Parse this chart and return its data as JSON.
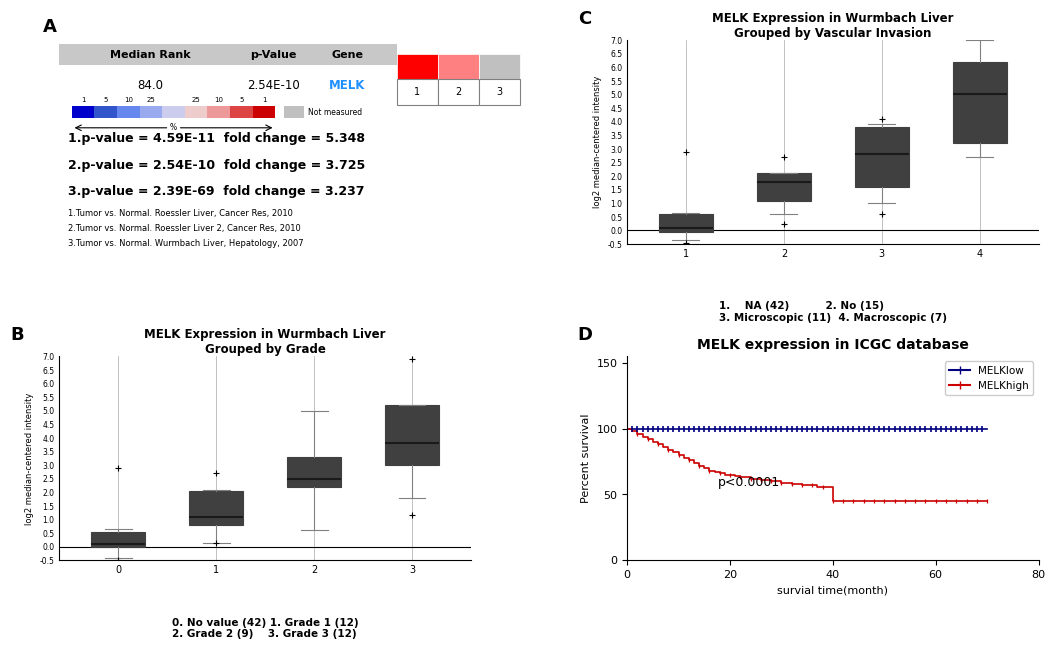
{
  "panel_A": {
    "header_bg": "#C8C8C8",
    "header_cols": [
      "Median Rank",
      "p-Value",
      "Gene"
    ],
    "row_values": [
      "84.0",
      "2.54E-10",
      "MELK"
    ],
    "melk_color": "#1E90FF",
    "heatmap_colors": [
      "#FF0000",
      "#FF8080",
      "#C0C0C0"
    ],
    "heatmap_labels": [
      "1",
      "2",
      "3"
    ],
    "legend_colors": [
      "#0000CC",
      "#3355CC",
      "#6688EE",
      "#99AAEE",
      "#CCCCEE",
      "#EECCCC",
      "#EE9999",
      "#DD4444",
      "#CC0000"
    ],
    "legend_tick_labels": [
      "1",
      "5",
      "10",
      "25",
      "",
      "25",
      "10",
      "5",
      "1"
    ],
    "pvalue_lines": [
      "1.p-value = 4.59E-11  fold change = 5.348",
      "2.p-value = 2.54E-10  fold change = 3.725",
      "3.p-value = 2.39E-69  fold change = 3.237"
    ],
    "source_lines": [
      "1.Tumor vs. Normal. Roessler Liver, Cancer Res, 2010",
      "2.Tumor vs. Normal. Roessler Liver 2, Cancer Res, 2010",
      "3.Tumor vs. Normal. Wurmbach Liver, Hepatology, 2007"
    ]
  },
  "panel_B": {
    "title": "MELK Expression in Wurmbach Liver",
    "subtitle": "Grouped by Grade",
    "ylabel": "log2 median-centered intensity",
    "xtick_labels": [
      "0",
      "1",
      "2",
      "3"
    ],
    "ylim": [
      -0.5,
      7.0
    ],
    "ytick_labels": [
      "-0.5",
      "0.0",
      "0.5",
      "1.0",
      "1.5",
      "2.0",
      "2.5",
      "3.0",
      "3.5",
      "4.0",
      "4.5",
      "5.0",
      "5.5",
      "6.0",
      "6.5",
      "7.0"
    ],
    "boxes": [
      {
        "q1": 0.0,
        "median": 0.1,
        "q3": 0.55,
        "whislo": -0.4,
        "whishi": 0.65,
        "fliers": [
          -0.5,
          2.9
        ]
      },
      {
        "q1": 0.8,
        "median": 1.1,
        "q3": 2.05,
        "whislo": 0.15,
        "whishi": 2.1,
        "fliers": [
          0.15,
          2.7
        ]
      },
      {
        "q1": 2.2,
        "median": 2.5,
        "q3": 3.3,
        "whislo": 0.6,
        "whishi": 5.0,
        "fliers": []
      },
      {
        "q1": 3.0,
        "median": 3.8,
        "q3": 5.2,
        "whislo": 1.8,
        "whishi": 5.2,
        "fliers": [
          1.15,
          6.9
        ]
      }
    ],
    "caption_line1": "0. No value (42) 1. Grade 1 (12)",
    "caption_line2": "2. Grade 2 (9)    3. Grade 3 (12)",
    "box_facecolor": "#5B8DB8",
    "box_edgecolor": "#404040",
    "whisker_color": "#808080",
    "median_color": "#1a1a1a"
  },
  "panel_C": {
    "title": "MELK Expression in Wurmbach Liver",
    "subtitle": "Grouped by Vascular Invasion",
    "ylabel": "log2 median-centered intensity",
    "xtick_labels": [
      "1",
      "2",
      "3",
      "4"
    ],
    "ylim": [
      -0.5,
      7.0
    ],
    "ytick_labels": [
      "-0.5",
      "0.0",
      "0.5",
      "1.0",
      "1.5",
      "2.0",
      "2.5",
      "3.0",
      "3.5",
      "4.0",
      "4.5",
      "5.0",
      "5.5",
      "6.0",
      "6.5",
      "7.0"
    ],
    "boxes": [
      {
        "q1": -0.05,
        "median": 0.1,
        "q3": 0.6,
        "whislo": -0.35,
        "whishi": 0.65,
        "fliers": [
          -0.45,
          2.9
        ]
      },
      {
        "q1": 1.1,
        "median": 1.8,
        "q3": 2.1,
        "whislo": 0.6,
        "whishi": 2.1,
        "fliers": [
          0.25,
          2.7
        ]
      },
      {
        "q1": 1.6,
        "median": 2.8,
        "q3": 3.8,
        "whislo": 1.0,
        "whishi": 3.9,
        "fliers": [
          0.6,
          4.1
        ]
      },
      {
        "q1": 3.2,
        "median": 5.0,
        "q3": 6.2,
        "whislo": 2.7,
        "whishi": 7.0,
        "fliers": []
      }
    ],
    "caption_line1": "1.    NA (42)          2. No (15)",
    "caption_line2": "3. Microscopic (11)  4. Macroscopic (7)",
    "box_facecolor": "#5B8DB8",
    "box_edgecolor": "#404040",
    "whisker_color": "#808080",
    "median_color": "#1a1a1a"
  },
  "panel_D": {
    "title": "MELK expression in ICGC database",
    "ylabel": "Percent survival",
    "xlabel": "survial time(month)",
    "ylim": [
      0,
      155
    ],
    "xlim": [
      0,
      80
    ],
    "yticks": [
      0,
      50,
      100,
      150
    ],
    "ytick_labels": [
      "0",
      "50",
      "100",
      "150"
    ],
    "xticks": [
      0,
      20,
      40,
      60,
      80
    ],
    "melklow_color": "#000080",
    "melkhigh_color": "#CC0000",
    "pvalue_text": "p<0.0001",
    "pvalue_x": 0.22,
    "pvalue_y": 0.38,
    "melklow_x": [
      0,
      1,
      2,
      3,
      4,
      5,
      6,
      7,
      8,
      9,
      10,
      11,
      12,
      13,
      14,
      15,
      16,
      17,
      18,
      19,
      20,
      21,
      22,
      23,
      24,
      25,
      26,
      27,
      28,
      29,
      30,
      31,
      32,
      33,
      34,
      35,
      36,
      37,
      38,
      39,
      40,
      41,
      42,
      43,
      44,
      45,
      46,
      47,
      48,
      49,
      50,
      51,
      52,
      53,
      54,
      55,
      56,
      57,
      58,
      59,
      60,
      61,
      62,
      63,
      64,
      65,
      66,
      67,
      68,
      69,
      70
    ],
    "melklow_y": [
      100,
      100,
      100,
      100,
      100,
      100,
      100,
      100,
      100,
      100,
      100,
      100,
      100,
      100,
      100,
      100,
      100,
      100,
      100,
      100,
      100,
      100,
      100,
      100,
      100,
      100,
      100,
      100,
      100,
      100,
      100,
      100,
      100,
      100,
      100,
      100,
      100,
      100,
      100,
      100,
      100,
      100,
      100,
      100,
      100,
      100,
      100,
      100,
      100,
      100,
      100,
      100,
      100,
      100,
      100,
      100,
      100,
      100,
      100,
      100,
      100,
      100,
      100,
      100,
      100,
      100,
      100,
      100,
      100,
      100,
      100
    ],
    "melkhigh_x": [
      0,
      1,
      2,
      3,
      4,
      5,
      6,
      7,
      8,
      9,
      10,
      11,
      12,
      13,
      14,
      15,
      16,
      17,
      18,
      19,
      20,
      21,
      22,
      23,
      24,
      25,
      26,
      27,
      28,
      29,
      30,
      31,
      32,
      33,
      34,
      35,
      36,
      37,
      38,
      39,
      40,
      41,
      42,
      43,
      44,
      45,
      46,
      47,
      48,
      49,
      50,
      51,
      52,
      53,
      54,
      55,
      56,
      57,
      58,
      59,
      60,
      61,
      62,
      63,
      64,
      65,
      66,
      67,
      68,
      69,
      70
    ],
    "melkhigh_y": [
      100,
      98,
      96,
      94,
      92,
      90,
      88,
      86,
      84,
      82,
      80,
      78,
      76,
      74,
      72,
      70,
      68,
      67,
      66,
      65,
      65,
      64,
      63,
      63,
      62,
      62,
      61,
      61,
      60,
      60,
      59,
      59,
      58,
      58,
      57,
      57,
      57,
      56,
      56,
      56,
      45,
      45,
      45,
      45,
      45,
      45,
      45,
      45,
      45,
      45,
      45,
      45,
      45,
      45,
      45,
      45,
      45,
      45,
      45,
      45,
      45,
      45,
      45,
      45,
      45,
      45,
      45,
      45,
      45,
      45,
      45
    ]
  }
}
